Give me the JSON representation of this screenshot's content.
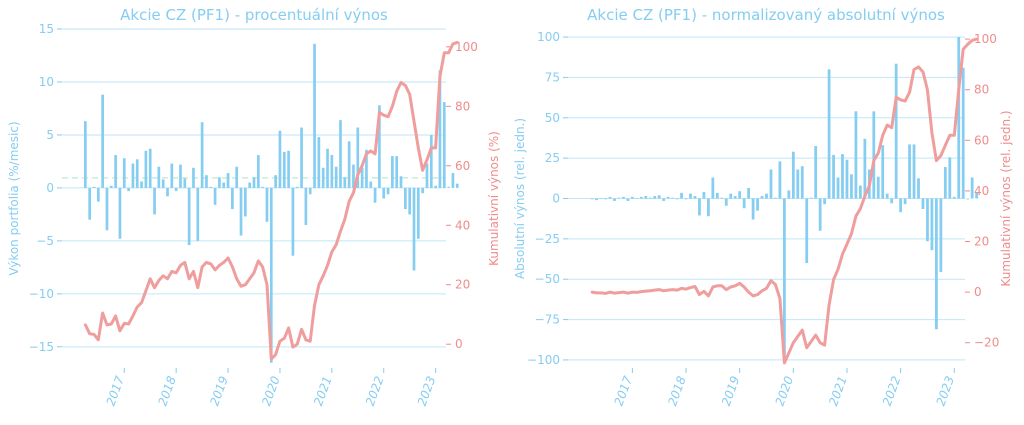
{
  "colors": {
    "bar": "#85cdf1",
    "line": "#f09d9d",
    "grid": "#bfe6f8",
    "zero_dash": "#c9ecd8",
    "text_left": "#85cdf1",
    "text_right": "#f08c8c"
  },
  "chart_data": [
    {
      "type": "bar+line",
      "title": "Akcie CZ (PF1) - procentuální výnos",
      "ylabel": "Výkon portfolia (%/mesic)",
      "y2label": "Kumulativní výnos (%)",
      "xlim": [
        2016.3,
        2023.7
      ],
      "ylim": [
        -17,
        15
      ],
      "y2lim": [
        -8,
        106
      ],
      "yticks": [
        -15,
        -10,
        -5,
        0,
        5,
        10,
        15
      ],
      "y2ticks": [
        0,
        20,
        40,
        60,
        80,
        100
      ],
      "xticks": [
        2017,
        2018,
        2019,
        2020,
        2021,
        2022,
        2023
      ],
      "series": [
        {
          "name": "Výkon portfolia (%/mesic)",
          "kind": "bar",
          "values": [
            6.3,
            -3.0,
            0.1,
            -1.3,
            8.8,
            -4.0,
            0.2,
            3.1,
            -4.8,
            2.8,
            -0.3,
            2.3,
            2.7,
            0.6,
            3.5,
            3.7,
            -2.5,
            2.0,
            0.8,
            -0.8,
            2.3,
            -0.3,
            2.2,
            0.9,
            -5.4,
            1.9,
            -5.0,
            6.2,
            1.2,
            0.1,
            -1.6,
            1.0,
            0.5,
            1.4,
            -2.0,
            2.0,
            -4.5,
            -2.7,
            0.5,
            1.0,
            3.1,
            0.1,
            -3.2,
            -16.5,
            1.2,
            5.4,
            3.4,
            3.5,
            -6.4,
            0.1,
            5.7,
            -3.5,
            -0.6,
            13.6,
            4.8,
            1.9,
            3.7,
            3.1,
            2.0,
            6.4,
            1.0,
            4.4,
            2.2,
            5.7,
            1.9,
            3.6,
            0.6,
            -1.4,
            7.8,
            -1.0,
            -0.6,
            3.0,
            3.0,
            1.1,
            -2.0,
            -2.5,
            -7.8,
            -4.8,
            -0.5,
            2.3,
            5.0,
            0.2,
            11.1,
            8.1,
            0.1,
            1.4,
            0.4
          ]
        },
        {
          "name": "Kumulativní výnos (%)",
          "kind": "line",
          "values": [
            6.5,
            3.5,
            3.3,
            1.5,
            10.5,
            6.5,
            6.8,
            9.5,
            4.5,
            7.0,
            6.8,
            9.5,
            12.5,
            14.0,
            18.0,
            22.0,
            19.0,
            21.5,
            23.0,
            22.0,
            24.5,
            24.0,
            26.5,
            27.5,
            22.0,
            24.5,
            19.0,
            26.0,
            27.5,
            27.0,
            25.0,
            26.5,
            27.5,
            29.0,
            26.0,
            22.0,
            19.5,
            20.0,
            22.0,
            24.0,
            28.0,
            26.0,
            20.0,
            -5.0,
            -3.5,
            1.0,
            2.0,
            5.5,
            -1.0,
            0.0,
            5.0,
            1.5,
            1.0,
            13.0,
            20.0,
            23.0,
            26.5,
            31.0,
            33.5,
            38.0,
            42.0,
            48.0,
            51.0,
            57.0,
            60.0,
            64.0,
            65.0,
            64.0,
            78.0,
            77.0,
            76.5,
            80.0,
            85.0,
            88.0,
            87.0,
            84.0,
            75.0,
            66.0,
            58.5,
            62.0,
            66.0,
            66.0,
            90.0,
            98.0,
            98.0,
            101.0,
            101.5
          ]
        }
      ]
    },
    {
      "type": "bar+line",
      "title": "Akcie CZ (PF1) - normalizovaný absolutní výnos",
      "ylabel": "Absolutní výnos (rel. jedn.)",
      "y2label": "Kumulativní výnos (rel. jedn.)",
      "xlim": [
        2016.3,
        2023.7
      ],
      "ylim": [
        -105,
        105
      ],
      "y2lim": [
        -30,
        104
      ],
      "yticks": [
        -100,
        -75,
        -50,
        -25,
        0,
        25,
        50,
        75,
        100
      ],
      "y2ticks": [
        -20,
        0,
        20,
        40,
        60,
        80,
        100
      ],
      "xticks": [
        2017,
        2018,
        2019,
        2020,
        2021,
        2022,
        2023
      ],
      "series": [
        {
          "name": "Absolutní výnos (rel. jedn.)",
          "kind": "bar",
          "values": [
            -0.5,
            -1.0,
            0.0,
            -0.5,
            1.0,
            -1.5,
            0.5,
            1.0,
            -1.5,
            1.0,
            0.0,
            1.0,
            1.5,
            0.5,
            1.5,
            2.0,
            -1.5,
            1.0,
            0.5,
            -0.5,
            3.5,
            -0.5,
            3.0,
            1.5,
            -10.5,
            4.0,
            -11.0,
            13.0,
            3.5,
            0.5,
            -4.5,
            3.0,
            1.5,
            4.5,
            -6.0,
            6.5,
            -13.0,
            -7.5,
            1.5,
            3.0,
            18.0,
            0.5,
            23.0,
            -100.0,
            5.0,
            29.0,
            18.0,
            20.0,
            -40.0,
            0.5,
            32.5,
            -20.0,
            -3.5,
            80.0,
            27.0,
            13.0,
            27.5,
            24.0,
            15.0,
            54.0,
            8.0,
            37.0,
            18.0,
            54.0,
            13.5,
            33.0,
            3.0,
            -3.0,
            83.5,
            -8.5,
            -3.5,
            33.5,
            33.5,
            12.5,
            -6.5,
            -26.5,
            -32.0,
            -81.0,
            -45.5,
            19.5,
            25.5,
            1.0,
            100.0,
            81.0,
            -0.5,
            13.0,
            3.5
          ]
        },
        {
          "name": "Kumulativní výnos (rel. jedn.)",
          "kind": "line",
          "values": [
            0.0,
            -0.3,
            -0.3,
            -0.5,
            0.0,
            -0.4,
            -0.2,
            0.0,
            -0.4,
            0.0,
            -0.1,
            0.2,
            0.4,
            0.5,
            0.8,
            1.0,
            0.5,
            0.8,
            1.0,
            0.8,
            1.5,
            1.2,
            1.8,
            2.2,
            -1.0,
            0.3,
            -1.5,
            2.0,
            2.5,
            2.5,
            1.0,
            2.0,
            2.5,
            3.5,
            2.0,
            0.0,
            -1.5,
            -1.0,
            0.5,
            1.5,
            4.5,
            3.0,
            -2.5,
            -28.0,
            -24.0,
            -20.0,
            -17.5,
            -15.0,
            -22.0,
            -19.5,
            -17.0,
            -20.0,
            -21.0,
            -5.0,
            5.0,
            9.0,
            15.0,
            19.0,
            23.0,
            30.0,
            33.0,
            38.0,
            42.0,
            52.0,
            55.0,
            62.0,
            66.0,
            65.0,
            77.0,
            76.0,
            75.5,
            79.0,
            88.0,
            89.0,
            87.0,
            80.0,
            63.0,
            52.0,
            54.0,
            58.0,
            62.0,
            62.0,
            80.0,
            96.0,
            98.0,
            99.5,
            100.0
          ]
        }
      ]
    }
  ]
}
